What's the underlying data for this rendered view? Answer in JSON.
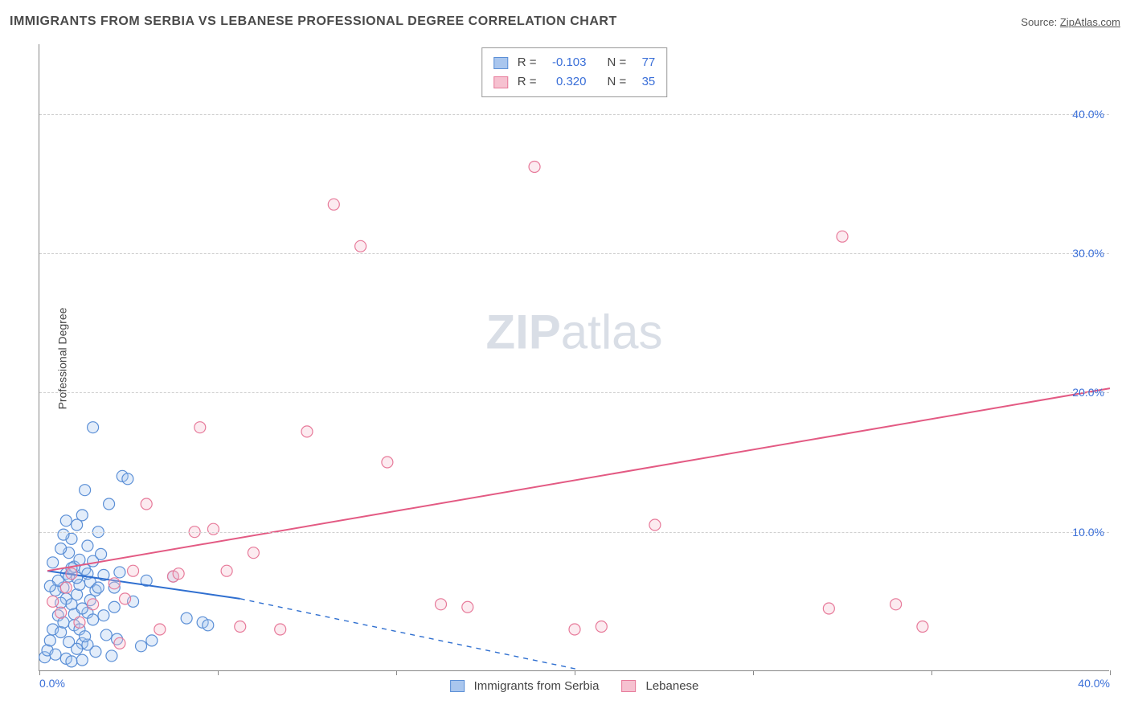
{
  "title": "IMMIGRANTS FROM SERBIA VS LEBANESE PROFESSIONAL DEGREE CORRELATION CHART",
  "source_label": "Source:",
  "source_name": "ZipAtlas.com",
  "watermark_zip": "ZIP",
  "watermark_atlas": "atlas",
  "chart": {
    "type": "scatter",
    "xlim": [
      0,
      40
    ],
    "ylim": [
      0,
      45
    ],
    "x_tick_positions": [
      0,
      6.67,
      13.33,
      20,
      26.67,
      33.33,
      40
    ],
    "x_tick_labels_shown": {
      "0": "0.0%",
      "40": "40.0%"
    },
    "y_gridlines": [
      10,
      20,
      30,
      40
    ],
    "y_tick_labels": [
      "10.0%",
      "20.0%",
      "30.0%",
      "40.0%"
    ],
    "ylabel": "Professional Degree",
    "background_color": "#ffffff",
    "grid_color": "#d0d0d0",
    "axis_color": "#888888",
    "tick_label_color": "#3a6fd8",
    "marker_radius": 7,
    "marker_stroke_width": 1.2,
    "marker_fill_opacity": 0.32,
    "series": [
      {
        "name": "Immigrants from Serbia",
        "color_stroke": "#5b8fd6",
        "color_fill": "#a9c6ee",
        "R": "-0.103",
        "N": "77",
        "trend": {
          "x1": 0.3,
          "y1": 7.2,
          "x2_solid": 7.5,
          "y2_solid": 5.2,
          "x2_dash": 20.2,
          "y2_dash": 0.1,
          "color": "#2f6fd0",
          "width": 2
        },
        "points": [
          [
            0.2,
            1.0
          ],
          [
            0.3,
            1.5
          ],
          [
            0.4,
            2.2
          ],
          [
            0.5,
            3.0
          ],
          [
            0.6,
            1.2
          ],
          [
            0.7,
            4.0
          ],
          [
            0.8,
            2.8
          ],
          [
            0.9,
            6.0
          ],
          [
            1.0,
            7.0
          ],
          [
            1.0,
            5.2
          ],
          [
            1.1,
            8.5
          ],
          [
            1.1,
            6.8
          ],
          [
            1.2,
            4.8
          ],
          [
            1.2,
            9.5
          ],
          [
            1.3,
            3.3
          ],
          [
            1.3,
            7.5
          ],
          [
            1.4,
            10.5
          ],
          [
            1.4,
            5.5
          ],
          [
            1.5,
            6.2
          ],
          [
            1.5,
            8.0
          ],
          [
            1.6,
            2.0
          ],
          [
            1.6,
            11.2
          ],
          [
            1.7,
            7.3
          ],
          [
            1.7,
            13.0
          ],
          [
            1.8,
            4.2
          ],
          [
            1.8,
            9.0
          ],
          [
            1.9,
            6.4
          ],
          [
            2.0,
            3.7
          ],
          [
            2.0,
            7.9
          ],
          [
            2.1,
            1.4
          ],
          [
            2.1,
            5.8
          ],
          [
            2.2,
            10.0
          ],
          [
            2.3,
            8.4
          ],
          [
            2.4,
            6.9
          ],
          [
            2.5,
            2.6
          ],
          [
            2.6,
            12.0
          ],
          [
            2.8,
            4.6
          ],
          [
            3.0,
            7.1
          ],
          [
            3.1,
            14.0
          ],
          [
            3.3,
            13.8
          ],
          [
            3.5,
            5.0
          ],
          [
            2.7,
            1.1
          ],
          [
            2.9,
            2.3
          ],
          [
            1.0,
            0.9
          ],
          [
            1.2,
            0.7
          ],
          [
            1.4,
            1.6
          ],
          [
            1.6,
            0.8
          ],
          [
            1.8,
            1.9
          ],
          [
            0.9,
            3.5
          ],
          [
            0.8,
            4.9
          ],
          [
            1.1,
            2.1
          ],
          [
            1.3,
            4.1
          ],
          [
            1.5,
            3.0
          ],
          [
            1.7,
            2.5
          ],
          [
            1.9,
            5.1
          ],
          [
            0.6,
            5.8
          ],
          [
            0.7,
            6.5
          ],
          [
            0.5,
            7.8
          ],
          [
            0.4,
            6.1
          ],
          [
            2.0,
            17.5
          ],
          [
            1.6,
            4.5
          ],
          [
            1.4,
            6.7
          ],
          [
            1.2,
            7.4
          ],
          [
            1.8,
            7.0
          ],
          [
            2.2,
            6.0
          ],
          [
            2.4,
            4.0
          ],
          [
            0.9,
            9.8
          ],
          [
            0.8,
            8.8
          ],
          [
            1.0,
            10.8
          ],
          [
            3.8,
            1.8
          ],
          [
            4.2,
            2.2
          ],
          [
            6.1,
            3.5
          ],
          [
            6.3,
            3.3
          ],
          [
            4.0,
            6.5
          ],
          [
            5.0,
            6.8
          ],
          [
            5.5,
            3.8
          ],
          [
            2.8,
            6.0
          ]
        ]
      },
      {
        "name": "Lebanese",
        "color_stroke": "#e77a9a",
        "color_fill": "#f6c1d0",
        "R": "0.320",
        "N": "35",
        "trend": {
          "x1": 0.3,
          "y1": 7.2,
          "x2_solid": 40,
          "y2_solid": 20.3,
          "color": "#e35a83",
          "width": 2
        },
        "points": [
          [
            0.5,
            5.0
          ],
          [
            0.8,
            4.2
          ],
          [
            1.0,
            6.0
          ],
          [
            1.2,
            7.0
          ],
          [
            1.5,
            3.5
          ],
          [
            2.0,
            4.8
          ],
          [
            2.8,
            6.3
          ],
          [
            3.5,
            7.2
          ],
          [
            3.0,
            2.0
          ],
          [
            3.2,
            5.2
          ],
          [
            4.0,
            12.0
          ],
          [
            4.5,
            3.0
          ],
          [
            5.0,
            6.8
          ],
          [
            5.2,
            7.0
          ],
          [
            5.8,
            10.0
          ],
          [
            6.0,
            17.5
          ],
          [
            6.5,
            10.2
          ],
          [
            7.0,
            7.2
          ],
          [
            7.5,
            3.2
          ],
          [
            8.0,
            8.5
          ],
          [
            9.0,
            3.0
          ],
          [
            10.0,
            17.2
          ],
          [
            11.0,
            33.5
          ],
          [
            12.0,
            30.5
          ],
          [
            13.0,
            15.0
          ],
          [
            15.0,
            4.8
          ],
          [
            16.0,
            4.6
          ],
          [
            18.5,
            36.2
          ],
          [
            20.0,
            3.0
          ],
          [
            21.0,
            3.2
          ],
          [
            23.0,
            10.5
          ],
          [
            33.0,
            3.2
          ],
          [
            29.5,
            4.5
          ],
          [
            30.0,
            31.2
          ],
          [
            32.0,
            4.8
          ]
        ]
      }
    ]
  },
  "legend_bottom": [
    {
      "label": "Immigrants from Serbia",
      "fill": "#a9c6ee",
      "stroke": "#5b8fd6"
    },
    {
      "label": "Lebanese",
      "fill": "#f6c1d0",
      "stroke": "#e77a9a"
    }
  ]
}
